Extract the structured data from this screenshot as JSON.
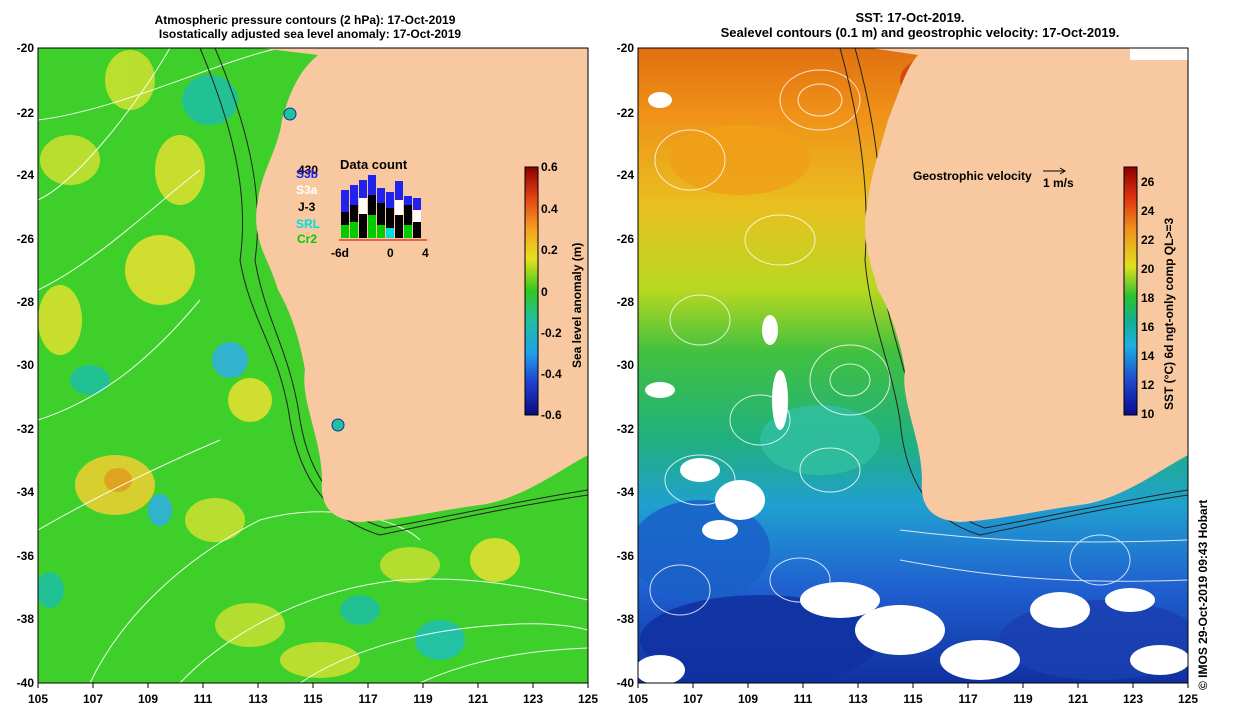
{
  "left_map": {
    "title_line1": "Atmospheric pressure contours (2 hPa): 17-Oct-2019",
    "title_line2": "Isostatically adjusted sea level anomaly: 17-Oct-2019",
    "colorbar_label": "Sea level anomaly (m)",
    "colorbar_ticks": [
      "0.6",
      "0.4",
      "0.2",
      "0",
      "-0.2",
      "-0.4",
      "-0.6"
    ],
    "data_count": {
      "title": "Data count",
      "max_label": "430",
      "sources": [
        {
          "label": "S3b",
          "color": "#2222ee"
        },
        {
          "label": "S3a",
          "color": "#ffffff"
        },
        {
          "label": "J-3",
          "color": "#000000"
        },
        {
          "label": "SRL",
          "color": "#00dddd"
        },
        {
          "label": "Cr2",
          "color": "#00cc00"
        }
      ],
      "x_ticks": [
        "-6d",
        "0",
        "4"
      ]
    }
  },
  "right_map": {
    "title_line1": "SST: 17-Oct-2019.",
    "title_line2": "Sealevel contours (0.1 m) and geostrophic velocity: 17-Oct-2019.",
    "velocity_label": "Geostrophic velocity",
    "velocity_scale": "1 m/s",
    "colorbar_label": "SST (°C) 6d ngt-only comp QL>=3",
    "colorbar_ticks": [
      "26",
      "24",
      "22",
      "20",
      "18",
      "16",
      "14",
      "12",
      "10"
    ]
  },
  "axes": {
    "lat_ticks": [
      "-20",
      "-22",
      "-24",
      "-26",
      "-28",
      "-30",
      "-32",
      "-34",
      "-36",
      "-38",
      "-40"
    ],
    "lon_ticks": [
      "105",
      "107",
      "109",
      "111",
      "113",
      "115",
      "117",
      "119",
      "121",
      "123",
      "125"
    ]
  },
  "credit": "© IMOS 29-Oct-2019 09:43 Hobart",
  "colors": {
    "land": "#f8c8a0",
    "sla_background": "#3ecf2a",
    "sst_warm": "#f08a10",
    "sst_cool": "#1060d0"
  }
}
